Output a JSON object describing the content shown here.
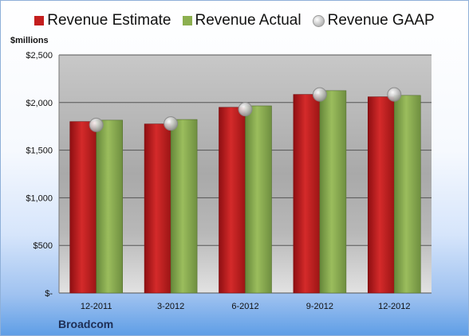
{
  "chart_data": {
    "type": "bar",
    "title": "",
    "ylabel": "$millions",
    "xlabel": "",
    "company": "Broadcom",
    "categories": [
      "12-2011",
      "3-2012",
      "6-2012",
      "9-2012",
      "12-2012"
    ],
    "series": [
      {
        "name": "Revenue Estimate",
        "type": "bar",
        "color": "#c41e1e",
        "values": [
          1800,
          1775,
          1950,
          2085,
          2060
        ]
      },
      {
        "name": "Revenue Actual",
        "type": "bar",
        "color": "#8caf4f",
        "values": [
          1815,
          1822,
          1965,
          2125,
          2075
        ]
      },
      {
        "name": "Revenue GAAP",
        "type": "marker",
        "color": "#b8b8b8",
        "values": [
          1765,
          1780,
          1930,
          2085,
          2085
        ]
      }
    ],
    "ylim": [
      0,
      2500
    ],
    "yticks": [
      0,
      500,
      1000,
      1500,
      2000,
      2500
    ],
    "ytick_labels": [
      "$-",
      "$500",
      "$1,000",
      "$1,500",
      "$2,000",
      "$2,500"
    ],
    "grid": true,
    "legend_position": "top"
  }
}
